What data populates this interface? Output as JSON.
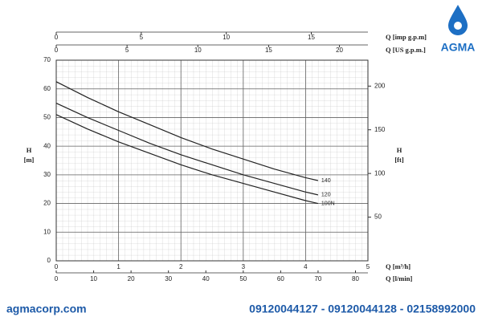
{
  "chart_data": {
    "type": "line",
    "x": [
      0,
      0.5,
      1,
      1.5,
      2,
      2.5,
      3,
      3.5,
      4,
      4.2
    ],
    "series": [
      {
        "name": "140",
        "color": "#222222",
        "values": [
          62.5,
          57,
          52,
          47.5,
          43,
          39,
          35.5,
          32,
          29,
          28
        ]
      },
      {
        "name": "120",
        "color": "#222222",
        "values": [
          55,
          50,
          45.5,
          41,
          37,
          33.5,
          30,
          27,
          24,
          23
        ]
      },
      {
        "name": "100N",
        "color": "#222222",
        "values": [
          51,
          46,
          41.5,
          37.5,
          33.5,
          30,
          27,
          24,
          21,
          20
        ]
      }
    ],
    "xlim": [
      0,
      5
    ],
    "xticks": [
      0,
      1,
      2,
      3,
      4,
      5
    ],
    "xlabel": "Q [m³/h]",
    "ylim": [
      0,
      70
    ],
    "yticks": [
      0,
      10,
      20,
      30,
      40,
      50,
      60,
      70
    ],
    "ylabel": [
      "H",
      "[m]"
    ],
    "y2lim": [
      0,
      229.66
    ],
    "y2ticks": [
      50,
      100,
      150,
      200
    ],
    "y2label": [
      "H",
      "[ft]"
    ],
    "extra_x_axes": [
      {
        "label": "Q [l/min]",
        "position": "bottom",
        "lim": [
          0,
          83.33
        ],
        "ticks": [
          0,
          10,
          20,
          30,
          40,
          50,
          60,
          70,
          80
        ]
      },
      {
        "label": "Q [imp g.p.m]",
        "position": "top",
        "lim": [
          0,
          18.33
        ],
        "ticks": [
          0,
          5,
          10,
          15
        ]
      },
      {
        "label": "Q [US g.p.m.]",
        "position": "top",
        "lim": [
          0,
          22.01
        ],
        "ticks": [
          0,
          5,
          10,
          15,
          20
        ]
      }
    ],
    "grid": true
  },
  "branding": {
    "logo": "AGMA",
    "website": "agmacorp.com",
    "phones": "09120044127 - 09120044128 - 02158992000"
  }
}
